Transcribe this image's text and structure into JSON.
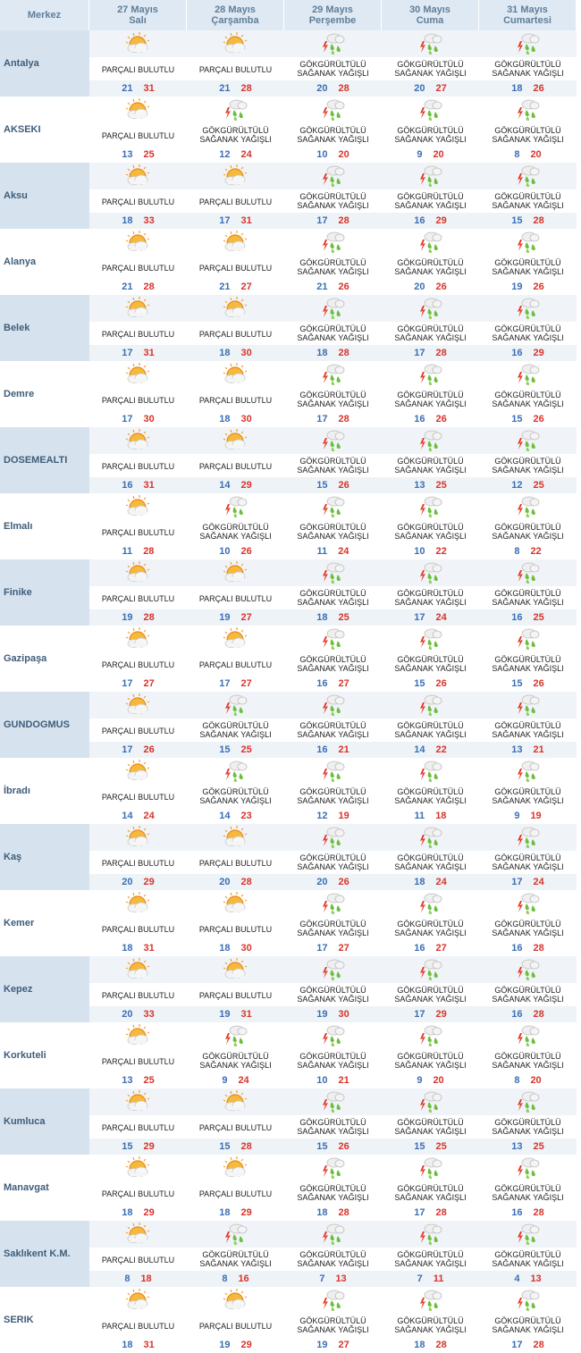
{
  "header": {
    "city_label": "Merkez",
    "days": [
      {
        "date": "27 Mayıs",
        "weekday": "Salı"
      },
      {
        "date": "28 Mayıs",
        "weekday": "Çarşamba"
      },
      {
        "date": "29 Mayıs",
        "weekday": "Perşembe"
      },
      {
        "date": "30 Mayıs",
        "weekday": "Cuma"
      },
      {
        "date": "31 Mayıs",
        "weekday": "Cumartesi"
      }
    ]
  },
  "conditions": {
    "pb": {
      "line1": "PARÇALI BULUTLU",
      "line2": "",
      "icon": "partly-cloudy-icon"
    },
    "gs": {
      "line1": "GÖKGÜRÜLTÜLÜ",
      "line2": "SAĞANAK YAĞIŞLI",
      "icon": "thunderstorm-rain-icon"
    }
  },
  "colors": {
    "min_temp": "#3a6fb5",
    "max_temp": "#d9342b",
    "header_bg": "#dfe9f3"
  },
  "rows": [
    {
      "city": "Antalya",
      "days": [
        [
          "pb",
          21,
          31
        ],
        [
          "pb",
          21,
          28
        ],
        [
          "gs",
          20,
          28
        ],
        [
          "gs",
          20,
          27
        ],
        [
          "gs",
          18,
          26
        ]
      ]
    },
    {
      "city": "AKSEKI",
      "days": [
        [
          "pb",
          13,
          25
        ],
        [
          "gs",
          12,
          24
        ],
        [
          "gs",
          10,
          20
        ],
        [
          "gs",
          9,
          20
        ],
        [
          "gs",
          8,
          20
        ]
      ]
    },
    {
      "city": "Aksu",
      "days": [
        [
          "pb",
          18,
          33
        ],
        [
          "pb",
          17,
          31
        ],
        [
          "gs",
          17,
          28
        ],
        [
          "gs",
          16,
          29
        ],
        [
          "gs",
          15,
          28
        ]
      ]
    },
    {
      "city": "Alanya",
      "days": [
        [
          "pb",
          21,
          28
        ],
        [
          "pb",
          21,
          27
        ],
        [
          "gs",
          21,
          26
        ],
        [
          "gs",
          20,
          26
        ],
        [
          "gs",
          19,
          26
        ]
      ]
    },
    {
      "city": "Belek",
      "days": [
        [
          "pb",
          17,
          31
        ],
        [
          "pb",
          18,
          30
        ],
        [
          "gs",
          18,
          28
        ],
        [
          "gs",
          17,
          28
        ],
        [
          "gs",
          16,
          29
        ]
      ]
    },
    {
      "city": "Demre",
      "days": [
        [
          "pb",
          17,
          30
        ],
        [
          "pb",
          18,
          30
        ],
        [
          "gs",
          17,
          28
        ],
        [
          "gs",
          16,
          26
        ],
        [
          "gs",
          15,
          26
        ]
      ]
    },
    {
      "city": "DOSEMEALTI",
      "days": [
        [
          "pb",
          16,
          31
        ],
        [
          "pb",
          14,
          29
        ],
        [
          "gs",
          15,
          26
        ],
        [
          "gs",
          13,
          25
        ],
        [
          "gs",
          12,
          25
        ]
      ]
    },
    {
      "city": "Elmalı",
      "days": [
        [
          "pb",
          11,
          28
        ],
        [
          "gs",
          10,
          26
        ],
        [
          "gs",
          11,
          24
        ],
        [
          "gs",
          10,
          22
        ],
        [
          "gs",
          8,
          22
        ]
      ]
    },
    {
      "city": "Finike",
      "days": [
        [
          "pb",
          19,
          28
        ],
        [
          "pb",
          19,
          27
        ],
        [
          "gs",
          18,
          25
        ],
        [
          "gs",
          17,
          24
        ],
        [
          "gs",
          16,
          25
        ]
      ]
    },
    {
      "city": "Gazipaşa",
      "days": [
        [
          "pb",
          17,
          27
        ],
        [
          "pb",
          17,
          27
        ],
        [
          "gs",
          16,
          27
        ],
        [
          "gs",
          15,
          26
        ],
        [
          "gs",
          15,
          26
        ]
      ]
    },
    {
      "city": "GUNDOGMUS",
      "days": [
        [
          "pb",
          17,
          26
        ],
        [
          "gs",
          15,
          25
        ],
        [
          "gs",
          16,
          21
        ],
        [
          "gs",
          14,
          22
        ],
        [
          "gs",
          13,
          21
        ]
      ]
    },
    {
      "city": "İbradı",
      "days": [
        [
          "pb",
          14,
          24
        ],
        [
          "gs",
          14,
          23
        ],
        [
          "gs",
          12,
          19
        ],
        [
          "gs",
          11,
          18
        ],
        [
          "gs",
          9,
          19
        ]
      ]
    },
    {
      "city": "Kaş",
      "days": [
        [
          "pb",
          20,
          29
        ],
        [
          "pb",
          20,
          28
        ],
        [
          "gs",
          20,
          26
        ],
        [
          "gs",
          18,
          24
        ],
        [
          "gs",
          17,
          24
        ]
      ]
    },
    {
      "city": "Kemer",
      "days": [
        [
          "pb",
          18,
          31
        ],
        [
          "pb",
          18,
          30
        ],
        [
          "gs",
          17,
          27
        ],
        [
          "gs",
          16,
          27
        ],
        [
          "gs",
          16,
          28
        ]
      ]
    },
    {
      "city": "Kepez",
      "days": [
        [
          "pb",
          20,
          33
        ],
        [
          "pb",
          19,
          31
        ],
        [
          "gs",
          19,
          30
        ],
        [
          "gs",
          17,
          29
        ],
        [
          "gs",
          16,
          28
        ]
      ]
    },
    {
      "city": "Korkuteli",
      "days": [
        [
          "pb",
          13,
          25
        ],
        [
          "gs",
          9,
          24
        ],
        [
          "gs",
          10,
          21
        ],
        [
          "gs",
          9,
          20
        ],
        [
          "gs",
          8,
          20
        ]
      ]
    },
    {
      "city": "Kumluca",
      "days": [
        [
          "pb",
          15,
          29
        ],
        [
          "pb",
          15,
          28
        ],
        [
          "gs",
          15,
          26
        ],
        [
          "gs",
          15,
          25
        ],
        [
          "gs",
          13,
          25
        ]
      ]
    },
    {
      "city": "Manavgat",
      "days": [
        [
          "pb",
          18,
          29
        ],
        [
          "pb",
          18,
          29
        ],
        [
          "gs",
          18,
          28
        ],
        [
          "gs",
          17,
          28
        ],
        [
          "gs",
          16,
          28
        ]
      ]
    },
    {
      "city": "Saklıkent K.M.",
      "days": [
        [
          "pb",
          8,
          18
        ],
        [
          "gs",
          8,
          16
        ],
        [
          "gs",
          7,
          13
        ],
        [
          "gs",
          7,
          11
        ],
        [
          "gs",
          4,
          13
        ]
      ]
    },
    {
      "city": "SERIK",
      "days": [
        [
          "pb",
          18,
          31
        ],
        [
          "pb",
          19,
          29
        ],
        [
          "gs",
          19,
          27
        ],
        [
          "gs",
          18,
          28
        ],
        [
          "gs",
          17,
          28
        ]
      ]
    }
  ]
}
